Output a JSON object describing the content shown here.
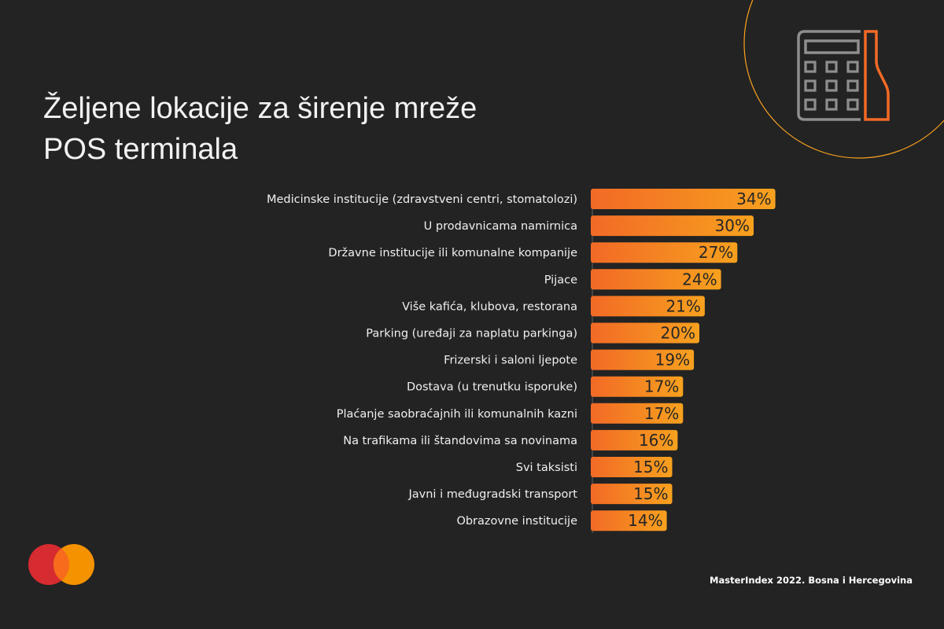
{
  "title_line1": "Željene lokacije za širenje mreže",
  "title_line2": "POS terminala",
  "source": "MasterIndex 2022. Bosna i Hercegovina",
  "icons": {
    "top_right": "calculator-pos-icon",
    "logo": "mastercard-logo"
  },
  "colors": {
    "background": "#232323",
    "bar_start": "#f26a26",
    "bar_end": "#f7a11e",
    "circle": "#f7a11e",
    "logo_red": "#d62b30",
    "logo_orange": "#f59200"
  },
  "chart_data": {
    "type": "bar",
    "orientation": "horizontal",
    "categories": [
      "Medicinske institucije (zdravstveni centri, stomatolozi)",
      "U prodavnicama namirnica",
      "Državne institucije ili komunalne kompanije",
      "Pijace",
      "Više kafića, klubova, restorana",
      "Parking (uređaji za naplatu parkinga)",
      "Frizerski i saloni ljepote",
      "Dostava (u trenutku isporuke)",
      "Plaćanje saobraćajnih ili komunalnih kazni",
      "Na  trafikama ili štandovima sa novinama",
      "Svi taksisti",
      "Javni i međugradski transport",
      "Obrazovne institucije"
    ],
    "values": [
      34,
      30,
      27,
      24,
      21,
      20,
      19,
      17,
      17,
      16,
      15,
      15,
      14
    ],
    "value_labels": [
      "34%",
      "30%",
      "27%",
      "24%",
      "21%",
      "20%",
      "19%",
      "17%",
      "17%",
      "16%",
      "15%",
      "15%",
      "14%"
    ],
    "unit": "%",
    "grid": false
  }
}
